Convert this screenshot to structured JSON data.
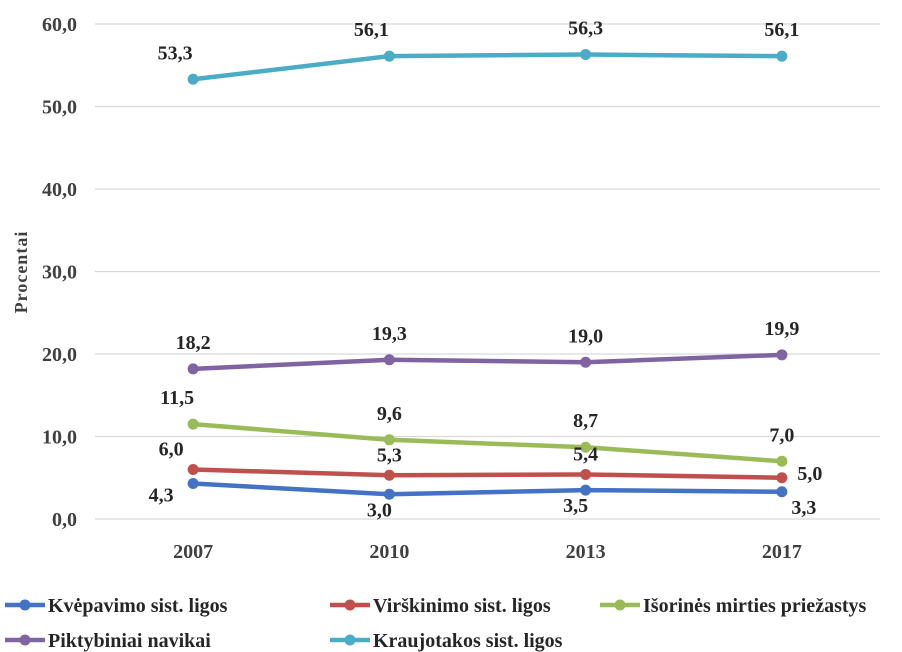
{
  "chart_data": {
    "type": "line",
    "categories": [
      "2007",
      "2010",
      "2013",
      "2017"
    ],
    "ylabel": "Procentai",
    "xlabel": "",
    "ylim": [
      0,
      60
    ],
    "yticks": [
      "0,0",
      "10,0",
      "20,0",
      "30,0",
      "40,0",
      "50,0",
      "60,0"
    ],
    "grid": true,
    "legend_position": "bottom",
    "series": [
      {
        "name": "Kvėpavimo sist. ligos",
        "color": "#4472C4",
        "values": [
          4.3,
          3.0,
          3.5,
          3.3
        ],
        "labels": [
          "4,3",
          "3,0",
          "3,5",
          "3,3"
        ]
      },
      {
        "name": "Virškinimo sist. ligos",
        "color": "#C0504D",
        "values": [
          6.0,
          5.3,
          5.4,
          5.0
        ],
        "labels": [
          "6,0",
          "5,3",
          "5,4",
          "5,0"
        ]
      },
      {
        "name": "Išorinės mirties priežastys",
        "color": "#9BBB59",
        "values": [
          11.5,
          9.6,
          8.7,
          7.0
        ],
        "labels": [
          "11,5",
          "9,6",
          "8,7",
          "7,0"
        ]
      },
      {
        "name": "Piktybiniai navikai",
        "color": "#8064A2",
        "values": [
          18.2,
          19.3,
          19.0,
          19.9
        ],
        "labels": [
          "18,2",
          "19,3",
          "19,0",
          "19,9"
        ]
      },
      {
        "name": "Kraujotakos sist. ligos",
        "color": "#4BACC6",
        "values": [
          53.3,
          56.1,
          56.3,
          56.1
        ],
        "labels": [
          "53,3",
          "56,1",
          "56,3",
          "56,1"
        ]
      }
    ]
  }
}
